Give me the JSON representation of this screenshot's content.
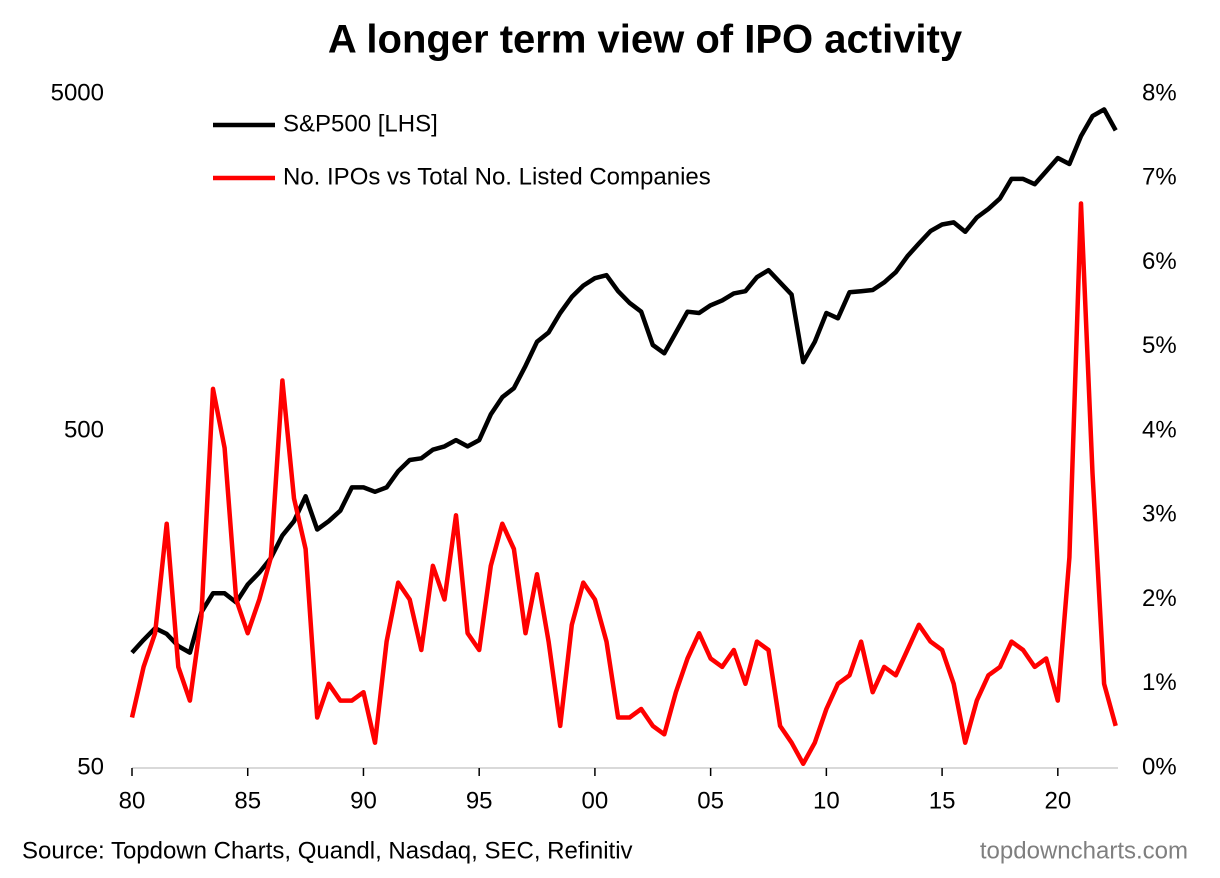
{
  "chart_data": {
    "type": "line",
    "title": "A longer term view of IPO activity",
    "source": "Source: Topdown Charts, Quandl, Nasdaq, SEC, Refinitiv",
    "watermark": "topdowncharts.com",
    "legend": "top-left",
    "ylog": true,
    "x": [
      1980,
      1980.5,
      1981,
      1981.5,
      1982,
      1982.5,
      1983,
      1983.5,
      1984,
      1984.5,
      1985,
      1985.5,
      1986,
      1986.5,
      1987,
      1987.5,
      1988,
      1988.5,
      1989,
      1989.5,
      1990,
      1990.5,
      1991,
      1991.5,
      1992,
      1992.5,
      1993,
      1993.5,
      1994,
      1994.5,
      1995,
      1995.5,
      1996,
      1996.5,
      1997,
      1997.5,
      1998,
      1998.5,
      1999,
      1999.5,
      2000,
      2000.5,
      2001,
      2001.5,
      2002,
      2002.5,
      2003,
      2003.5,
      2004,
      2004.5,
      2005,
      2005.5,
      2006,
      2006.5,
      2007,
      2007.5,
      2008,
      2008.5,
      2009,
      2009.5,
      2010,
      2010.5,
      2011,
      2011.5,
      2012,
      2012.5,
      2013,
      2013.5,
      2014,
      2014.5,
      2015,
      2015.5,
      2016,
      2016.5,
      2017,
      2017.5,
      2018,
      2018.5,
      2019,
      2019.5,
      2020,
      2020.5,
      2021,
      2021.5,
      2022,
      2022.5
    ],
    "xlim": [
      1980,
      2022.6
    ],
    "xticks": [
      {
        "value": 1980,
        "label": "80"
      },
      {
        "value": 1985,
        "label": "85"
      },
      {
        "value": 1990,
        "label": "90"
      },
      {
        "value": 1995,
        "label": "95"
      },
      {
        "value": 2000,
        "label": "00"
      },
      {
        "value": 2005,
        "label": "05"
      },
      {
        "value": 2010,
        "label": "10"
      },
      {
        "value": 2015,
        "label": "15"
      },
      {
        "value": 2020,
        "label": "20"
      }
    ],
    "ylim": [
      50,
      5000
    ],
    "yticks": [
      50,
      500,
      5000
    ],
    "y2lim": [
      0,
      8
    ],
    "y2ticks": [
      {
        "value": 0,
        "label": "0%"
      },
      {
        "value": 1,
        "label": "1%"
      },
      {
        "value": 2,
        "label": "2%"
      },
      {
        "value": 3,
        "label": "3%"
      },
      {
        "value": 4,
        "label": "4%"
      },
      {
        "value": 5,
        "label": "5%"
      },
      {
        "value": 6,
        "label": "6%"
      },
      {
        "value": 7,
        "label": "7%"
      },
      {
        "value": 8,
        "label": "8%"
      }
    ],
    "series": [
      {
        "name": "S&P500 [LHS]",
        "color": "#000000",
        "axis": "y",
        "values": [
          110,
          120,
          130,
          125,
          115,
          110,
          145,
          165,
          165,
          155,
          175,
          190,
          210,
          245,
          270,
          320,
          255,
          270,
          290,
          340,
          340,
          330,
          340,
          380,
          410,
          415,
          440,
          450,
          470,
          450,
          470,
          560,
          630,
          670,
          780,
          920,
          980,
          1120,
          1250,
          1350,
          1420,
          1450,
          1300,
          1200,
          1130,
          900,
          850,
          980,
          1130,
          1120,
          1180,
          1220,
          1280,
          1300,
          1430,
          1500,
          1380,
          1270,
          800,
          920,
          1120,
          1080,
          1290,
          1300,
          1310,
          1380,
          1480,
          1650,
          1800,
          1960,
          2050,
          2080,
          1950,
          2150,
          2280,
          2450,
          2800,
          2800,
          2700,
          2950,
          3230,
          3100,
          3750,
          4300,
          4500,
          3900
        ]
      },
      {
        "name": "No. IPOs vs Total No. Listed Companies",
        "color": "#ff0000",
        "axis": "y2",
        "values": [
          0.6,
          1.2,
          1.6,
          2.9,
          1.2,
          0.8,
          1.8,
          4.5,
          3.8,
          2.0,
          1.6,
          2.0,
          2.5,
          4.6,
          3.2,
          2.6,
          0.6,
          1.0,
          0.8,
          0.8,
          0.9,
          0.3,
          1.5,
          2.2,
          2.0,
          1.4,
          2.4,
          2.0,
          3.0,
          1.6,
          1.4,
          2.4,
          2.9,
          2.6,
          1.6,
          2.3,
          1.5,
          0.5,
          1.7,
          2.2,
          2.0,
          1.5,
          0.6,
          0.6,
          0.7,
          0.5,
          0.4,
          0.9,
          1.3,
          1.6,
          1.3,
          1.2,
          1.4,
          1.0,
          1.5,
          1.4,
          0.5,
          0.3,
          0.05,
          0.3,
          0.7,
          1.0,
          1.1,
          1.5,
          0.9,
          1.2,
          1.1,
          1.4,
          1.7,
          1.5,
          1.4,
          1.0,
          0.3,
          0.8,
          1.1,
          1.2,
          1.5,
          1.4,
          1.2,
          1.3,
          0.8,
          2.5,
          6.7,
          3.5,
          1.0,
          0.5
        ]
      }
    ]
  }
}
